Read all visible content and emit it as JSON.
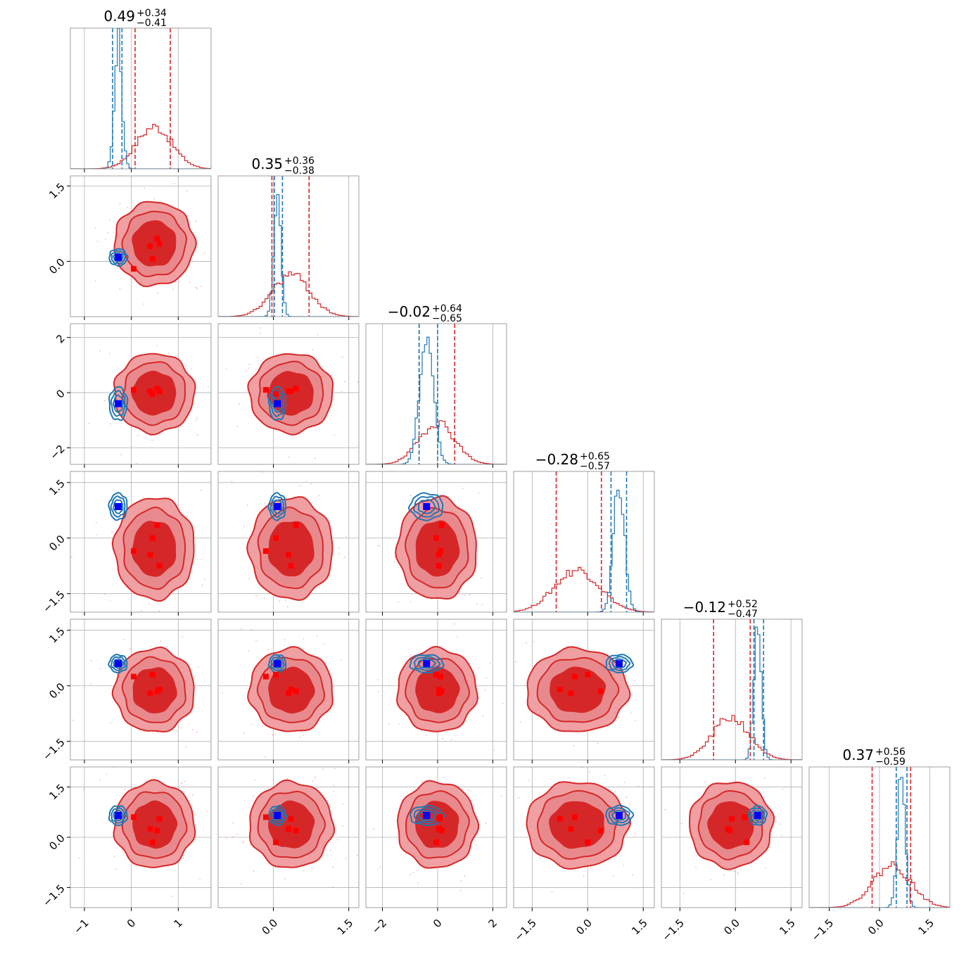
{
  "chart_data": {
    "type": "corner",
    "n_dims": 6,
    "grid": true,
    "colors": {
      "posterior_red": "#d62728",
      "posterior_blue": "#1f77b4",
      "marker_red": "#ff0000",
      "marker_blue": "#0000ff",
      "fill_outer": "#f0a0a3",
      "fill_inner": "#d62728",
      "grid": "#b0b0b0"
    },
    "series": [
      {
        "color_key": "posterior_red",
        "means": [
          0.49,
          0.35,
          -0.02,
          -0.28,
          -0.12,
          0.37
        ],
        "sigmas": [
          0.38,
          0.37,
          0.64,
          0.61,
          0.5,
          0.57
        ],
        "quantiles": [
          [
            0.08,
            0.83
          ],
          [
            -0.03,
            0.71
          ],
          [
            -0.67,
            0.62
          ],
          [
            -0.85,
            0.37
          ],
          [
            -0.59,
            0.4
          ],
          [
            -0.22,
            0.93
          ]
        ]
      },
      {
        "color_key": "posterior_blue",
        "means": [
          -0.28,
          0.08,
          -0.4,
          0.85,
          0.6,
          0.65
        ],
        "sigmas": [
          0.08,
          0.07,
          0.25,
          0.15,
          0.1,
          0.12
        ],
        "quantiles": [
          [
            -0.4,
            -0.2
          ],
          [
            0.02,
            0.18
          ],
          [
            -0.67,
            0.0
          ],
          [
            0.63,
            1.05
          ],
          [
            0.5,
            0.76
          ],
          [
            0.5,
            0.82
          ]
        ]
      }
    ],
    "titles": [
      {
        "main": "0.49",
        "plus": "+0.34",
        "minus": "−0.41"
      },
      {
        "main": "0.35",
        "plus": "+0.36",
        "minus": "−0.38"
      },
      {
        "main": "−0.02",
        "plus": "+0.64",
        "minus": "−0.65"
      },
      {
        "main": "−0.28",
        "plus": "+0.65",
        "minus": "−0.57"
      },
      {
        "main": "−0.12",
        "plus": "+0.52",
        "minus": "−0.47"
      },
      {
        "main": "0.37",
        "plus": "+0.56",
        "minus": "−0.59"
      }
    ],
    "ranges": [
      [
        -1.3,
        1.7
      ],
      [
        -1.1,
        1.7
      ],
      [
        -2.6,
        2.5
      ],
      [
        -2.0,
        1.8
      ],
      [
        -2.0,
        1.8
      ],
      [
        -2.1,
        2.1
      ]
    ],
    "ticks": [
      {
        "values": [
          -1,
          0,
          1
        ],
        "labels": [
          "−1",
          "0",
          "1"
        ]
      },
      {
        "values": [
          0.0,
          1.5
        ],
        "labels": [
          "0.0",
          "1.5"
        ]
      },
      {
        "values": [
          -2,
          0,
          2
        ],
        "labels": [
          "−2",
          "0",
          "2"
        ]
      },
      {
        "values": [
          -1.5,
          0.0,
          1.5
        ],
        "labels": [
          "−1.5",
          "0.0",
          "1.5"
        ]
      },
      {
        "values": [
          -1.5,
          0.0,
          1.5
        ],
        "labels": [
          "−1.5",
          "0.0",
          "1.5"
        ]
      },
      {
        "values": [
          -1.5,
          0.0,
          1.5
        ],
        "labels": [
          "−1.5",
          "0.0",
          "1.5"
        ]
      }
    ],
    "red_markers": [
      [
        0.55,
        0.45,
        0.15,
        0.35,
        -0.15,
        0.2
      ],
      [
        0.45,
        0.05,
        -0.05,
        0.0,
        0.3,
        -0.15
      ],
      [
        0.4,
        0.3,
        0.05,
        -0.45,
        -0.2,
        0.25
      ],
      [
        0.6,
        0.35,
        0.05,
        -0.75,
        -0.1,
        0.55
      ],
      [
        0.05,
        -0.15,
        0.1,
        -0.35,
        0.25,
        0.6
      ]
    ],
    "blue_marker": [
      -0.28,
      0.08,
      -0.4,
      0.85,
      0.6,
      0.65
    ]
  }
}
